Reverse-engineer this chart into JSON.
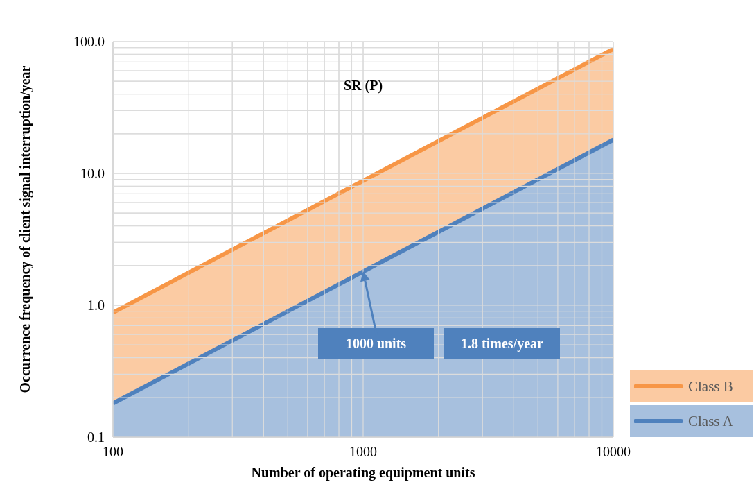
{
  "chart_data": {
    "type": "area",
    "title": "SR (P)",
    "xlabel": "Number of operating equipment units",
    "ylabel": "Occurrence frequency of client signal interruption/year",
    "x": [
      100,
      1000,
      10000
    ],
    "series": [
      {
        "name": "Class B",
        "color": "#f79646",
        "values": [
          0.88,
          8.8,
          88
        ]
      },
      {
        "name": "Class A",
        "color": "#4f81bd",
        "values": [
          0.18,
          1.8,
          18
        ]
      }
    ],
    "log": "xy",
    "xlim": [
      100,
      10000
    ],
    "ylim": [
      0.1,
      100
    ],
    "xticks": [
      100,
      {
        "value": 200,
        "label": null
      },
      {
        "value": 300,
        "label": null
      },
      {
        "value": 400,
        "label": null
      },
      {
        "value": 500,
        "label": null
      },
      {
        "value": 600,
        "label": null
      },
      {
        "value": 700,
        "label": null
      },
      {
        "value": 800,
        "label": null
      },
      {
        "value": 900,
        "label": null
      },
      1000,
      {
        "value": 2000,
        "label": null
      },
      {
        "value": 3000,
        "label": null
      },
      {
        "value": 4000,
        "label": null
      },
      {
        "value": 5000,
        "label": null
      },
      {
        "value": 6000,
        "label": null
      },
      {
        "value": 7000,
        "label": null
      },
      {
        "value": 8000,
        "label": null
      },
      {
        "value": 9000,
        "label": null
      },
      10000
    ],
    "yticks": [
      0.1,
      {
        "value": 0.2,
        "label": null
      },
      {
        "value": 0.3,
        "label": null
      },
      {
        "value": 0.4,
        "label": null
      },
      {
        "value": 0.5,
        "label": null
      },
      {
        "value": 0.6,
        "label": null
      },
      {
        "value": 0.7,
        "label": null
      },
      {
        "value": 0.8,
        "label": null
      },
      {
        "value": 0.9,
        "label": null
      },
      {
        "value": 1,
        "label": "1.0"
      },
      {
        "value": 2,
        "label": null
      },
      {
        "value": 3,
        "label": null
      },
      {
        "value": 4,
        "label": null
      },
      {
        "value": 5,
        "label": null
      },
      {
        "value": 6,
        "label": null
      },
      {
        "value": 7,
        "label": null
      },
      {
        "value": 8,
        "label": null
      },
      {
        "value": 9,
        "label": null
      },
      {
        "value": 10,
        "label": "10.0"
      },
      {
        "value": 20,
        "label": null
      },
      {
        "value": 30,
        "label": null
      },
      {
        "value": 40,
        "label": null
      },
      {
        "value": 50,
        "label": null
      },
      {
        "value": 60,
        "label": null
      },
      {
        "value": 70,
        "label": null
      },
      {
        "value": 80,
        "label": null
      },
      {
        "value": 90,
        "label": null
      },
      {
        "value": 100,
        "label": "100.0"
      }
    ],
    "grid": true,
    "legend": "right",
    "annotations": [
      "1000 units",
      "1.8 times/year"
    ]
  }
}
